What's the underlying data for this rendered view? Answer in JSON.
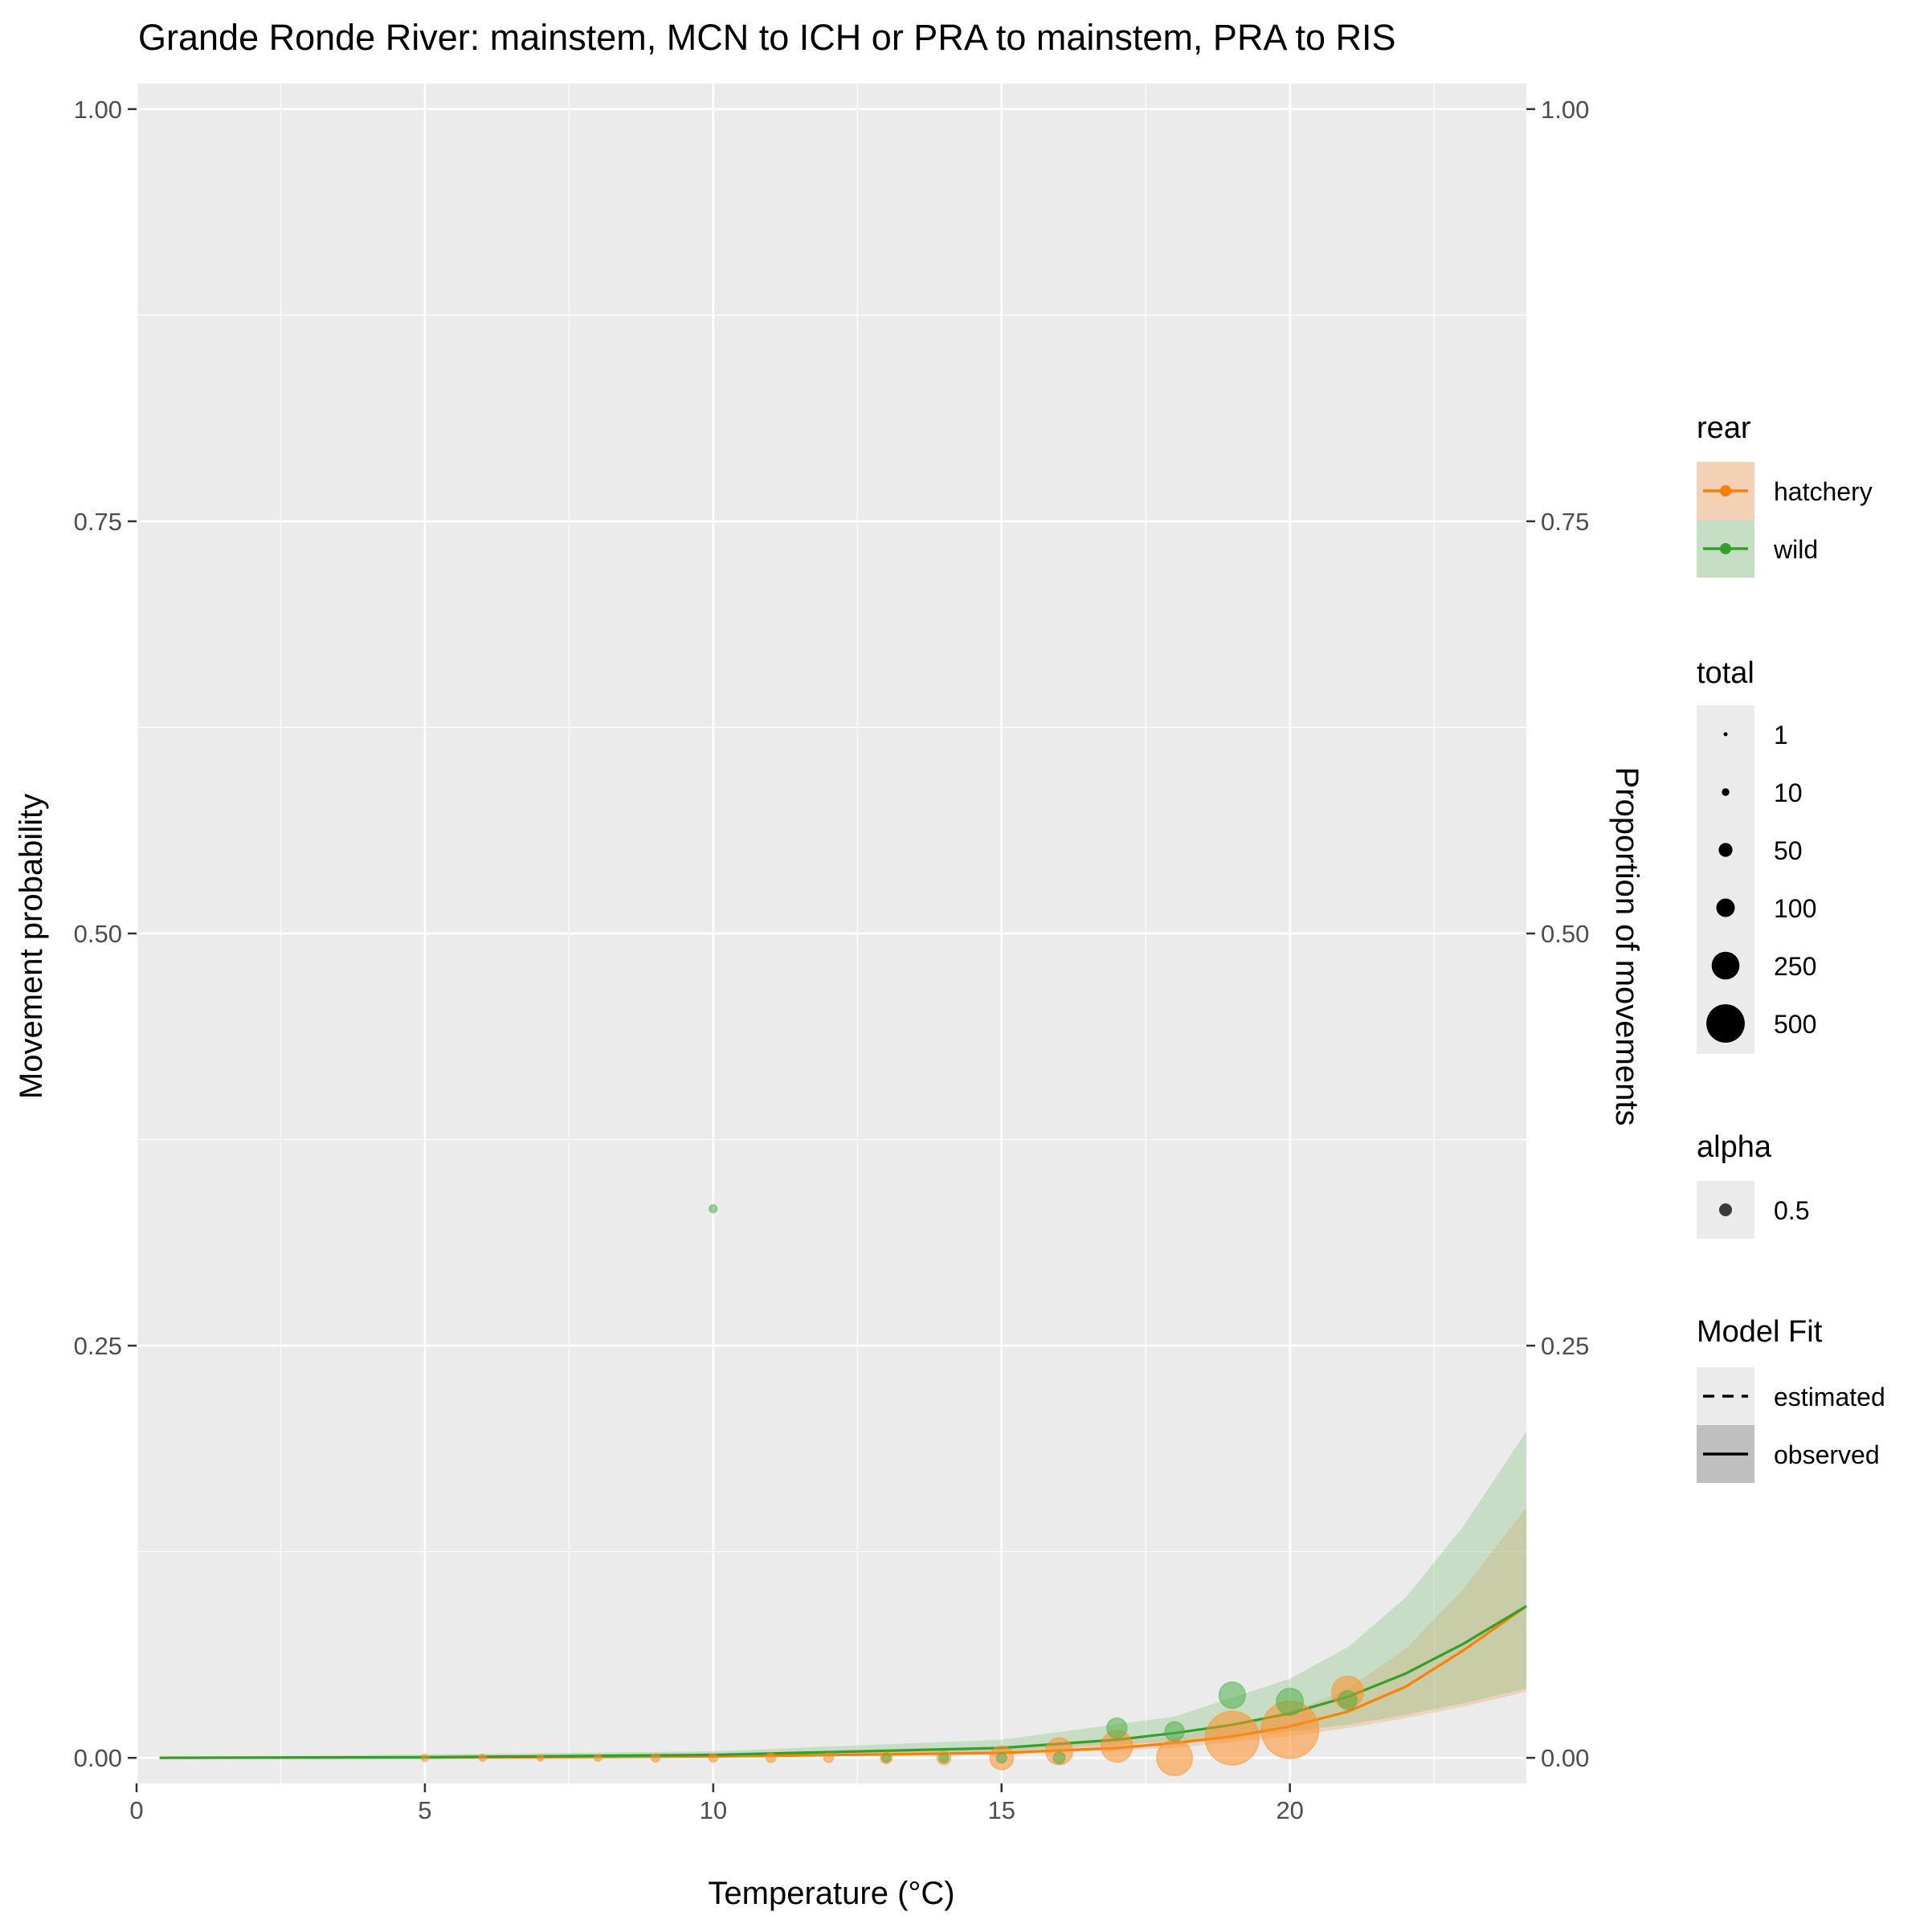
{
  "chart_data": {
    "type": "scatter",
    "title": "Grande Ronde River: mainstem, MCN to ICH or PRA to mainstem, PRA to RIS",
    "xlabel": "Temperature (°C)",
    "ylabel": "Movement probability",
    "ylabel_right": "Proportion of movements",
    "xlim": [
      0,
      24.1
    ],
    "ylim": [
      0,
      1
    ],
    "x_ticks": [
      0,
      5,
      10,
      15,
      20
    ],
    "x_tick_labels": [
      "0",
      "5",
      "10",
      "15",
      "20"
    ],
    "y_ticks": [
      0,
      0.25,
      0.5,
      0.75,
      1
    ],
    "y_tick_labels": [
      "0.00",
      "0.25",
      "0.50",
      "0.75",
      "1.00"
    ],
    "grid": true,
    "background": "#ebebeb",
    "colors": {
      "hatchery": "#ff7f00",
      "wild": "#33a02c"
    },
    "series": [
      {
        "name": "hatchery",
        "color": "#ff7f00",
        "points": [
          {
            "x": 5,
            "y": 0.0,
            "total": 2
          },
          {
            "x": 6,
            "y": 0.0,
            "total": 2
          },
          {
            "x": 7,
            "y": 0.0,
            "total": 1
          },
          {
            "x": 8,
            "y": 0.0,
            "total": 2
          },
          {
            "x": 9,
            "y": 0.0,
            "total": 4
          },
          {
            "x": 10,
            "y": 0.0,
            "total": 4
          },
          {
            "x": 11,
            "y": 0.0,
            "total": 6
          },
          {
            "x": 12,
            "y": 0.0,
            "total": 6
          },
          {
            "x": 13,
            "y": 0.0,
            "total": 12
          },
          {
            "x": 14,
            "y": 0.0,
            "total": 20
          },
          {
            "x": 15,
            "y": 0.0,
            "total": 80
          },
          {
            "x": 16,
            "y": 0.004,
            "total": 110
          },
          {
            "x": 17,
            "y": 0.007,
            "total": 160
          },
          {
            "x": 18,
            "y": 0.0,
            "total": 210
          },
          {
            "x": 19,
            "y": 0.012,
            "total": 520
          },
          {
            "x": 20,
            "y": 0.017,
            "total": 600
          },
          {
            "x": 21,
            "y": 0.04,
            "total": 160
          }
        ],
        "fit": [
          {
            "x": 0.4,
            "y": 2e-05
          },
          {
            "x": 5,
            "y": 0.00015
          },
          {
            "x": 10,
            "y": 0.0008
          },
          {
            "x": 15,
            "y": 0.003
          },
          {
            "x": 17,
            "y": 0.006
          },
          {
            "x": 18,
            "y": 0.009
          },
          {
            "x": 19,
            "y": 0.013
          },
          {
            "x": 20,
            "y": 0.019
          },
          {
            "x": 21,
            "y": 0.028
          },
          {
            "x": 22,
            "y": 0.043
          },
          {
            "x": 23,
            "y": 0.065
          },
          {
            "x": 24.1,
            "y": 0.092
          }
        ],
        "ribbon": [
          {
            "x": 0.4,
            "lo": 0.0,
            "hi": 0.0001
          },
          {
            "x": 10,
            "lo": 0.0003,
            "hi": 0.0015
          },
          {
            "x": 15,
            "lo": 0.002,
            "hi": 0.005
          },
          {
            "x": 18,
            "lo": 0.006,
            "hi": 0.013
          },
          {
            "x": 20,
            "lo": 0.013,
            "hi": 0.027
          },
          {
            "x": 21,
            "lo": 0.018,
            "hi": 0.042
          },
          {
            "x": 22,
            "lo": 0.024,
            "hi": 0.066
          },
          {
            "x": 23,
            "lo": 0.031,
            "hi": 0.102
          },
          {
            "x": 24.1,
            "lo": 0.04,
            "hi": 0.152
          }
        ]
      },
      {
        "name": "wild",
        "color": "#33a02c",
        "points": [
          {
            "x": 10,
            "y": 0.333,
            "total": 3
          },
          {
            "x": 13,
            "y": 0.0,
            "total": 4
          },
          {
            "x": 14,
            "y": 0.0,
            "total": 6
          },
          {
            "x": 15,
            "y": 0.0,
            "total": 8
          },
          {
            "x": 16,
            "y": 0.0,
            "total": 12
          },
          {
            "x": 17,
            "y": 0.018,
            "total": 55
          },
          {
            "x": 18,
            "y": 0.016,
            "total": 50
          },
          {
            "x": 19,
            "y": 0.038,
            "total": 105
          },
          {
            "x": 20,
            "y": 0.034,
            "total": 110
          },
          {
            "x": 21,
            "y": 0.035,
            "total": 45
          }
        ],
        "fit": [
          {
            "x": 0.4,
            "y": 6e-05
          },
          {
            "x": 5,
            "y": 0.0004
          },
          {
            "x": 10,
            "y": 0.0018
          },
          {
            "x": 15,
            "y": 0.006
          },
          {
            "x": 17,
            "y": 0.011
          },
          {
            "x": 18,
            "y": 0.015
          },
          {
            "x": 19,
            "y": 0.02
          },
          {
            "x": 20,
            "y": 0.027
          },
          {
            "x": 21,
            "y": 0.037
          },
          {
            "x": 22,
            "y": 0.051
          },
          {
            "x": 23,
            "y": 0.069
          },
          {
            "x": 24.1,
            "y": 0.092
          }
        ],
        "ribbon": [
          {
            "x": 0.4,
            "lo": 0.0,
            "hi": 0.0003
          },
          {
            "x": 10,
            "lo": 0.0007,
            "hi": 0.004
          },
          {
            "x": 15,
            "lo": 0.004,
            "hi": 0.011
          },
          {
            "x": 18,
            "lo": 0.01,
            "hi": 0.025
          },
          {
            "x": 20,
            "lo": 0.016,
            "hi": 0.048
          },
          {
            "x": 21,
            "lo": 0.02,
            "hi": 0.067
          },
          {
            "x": 22,
            "lo": 0.026,
            "hi": 0.097
          },
          {
            "x": 23,
            "lo": 0.033,
            "hi": 0.14
          },
          {
            "x": 24.1,
            "lo": 0.042,
            "hi": 0.198
          }
        ]
      }
    ],
    "legend": {
      "placement": "right",
      "rear": {
        "title": "rear",
        "items": [
          "hatchery",
          "wild"
        ]
      },
      "total": {
        "title": "total",
        "items": [
          "1",
          "10",
          "50",
          "100",
          "250",
          "500"
        ]
      },
      "alpha": {
        "title": "alpha",
        "items": [
          "0.5"
        ]
      },
      "model_fit": {
        "title": "Model Fit",
        "items": [
          "estimated",
          "observed"
        ]
      }
    }
  }
}
